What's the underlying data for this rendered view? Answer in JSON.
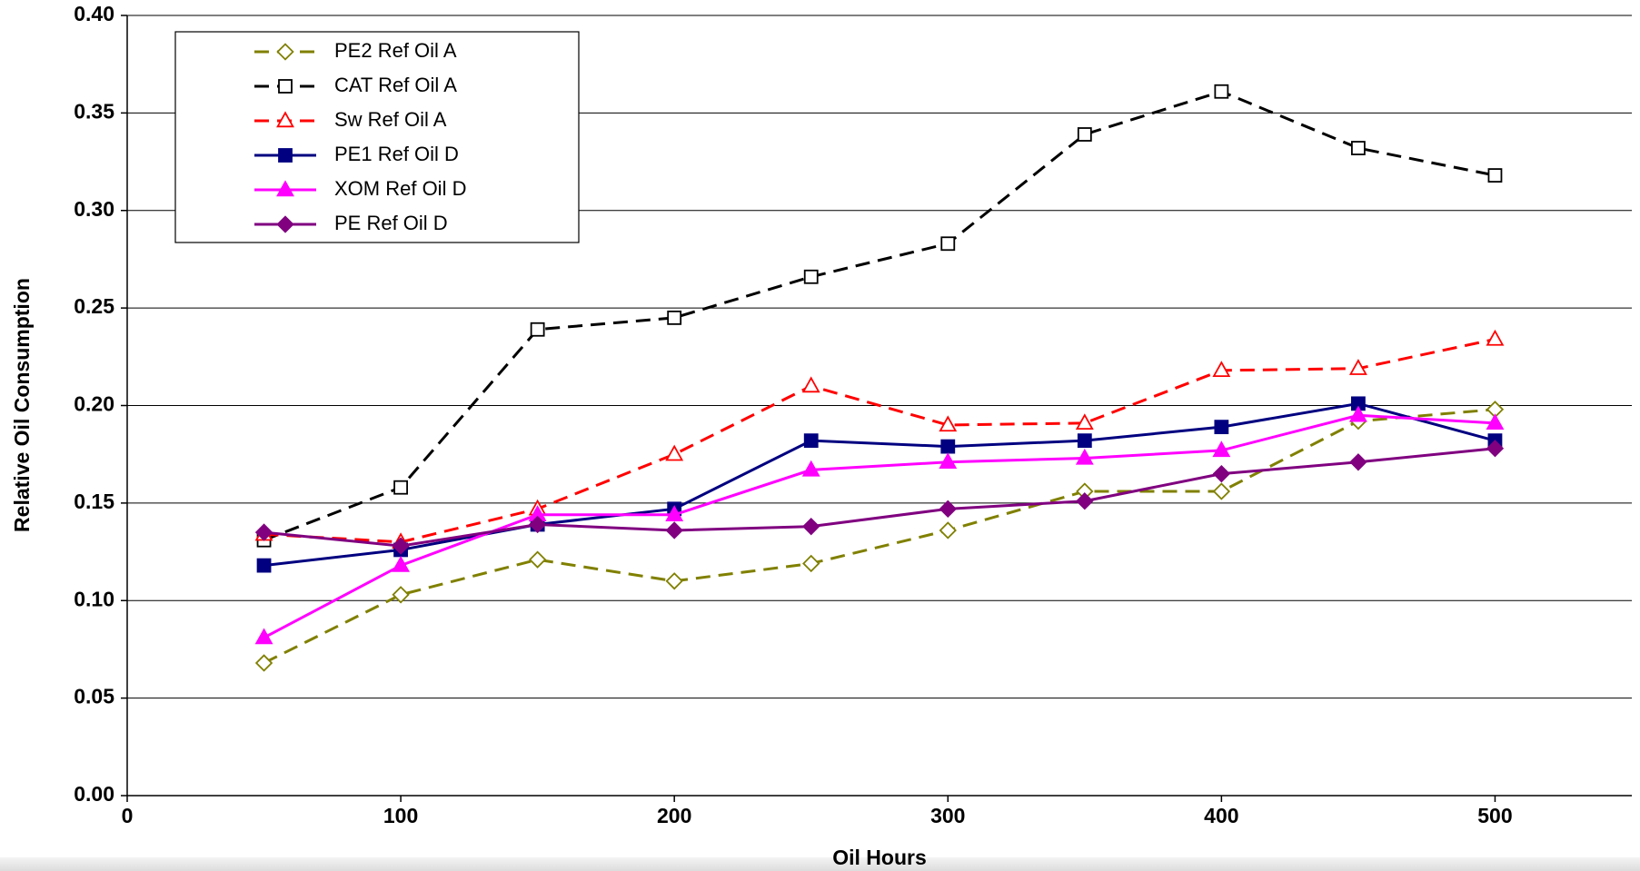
{
  "chart_data": {
    "type": "line",
    "x_label": "Oil Hours",
    "y_label": "Relative Oil Consumption",
    "x": [
      50,
      100,
      150,
      200,
      250,
      300,
      350,
      400,
      450,
      500
    ],
    "xlim": [
      0,
      550
    ],
    "xticks": [
      0,
      100,
      200,
      300,
      400,
      500
    ],
    "ylim": [
      0,
      0.4
    ],
    "yticks": [
      {
        "value": 0,
        "label": "0.00"
      },
      {
        "value": 0.05,
        "label": "0.05"
      },
      {
        "value": 0.1,
        "label": "0.10"
      },
      {
        "value": 0.15,
        "label": "0.15"
      },
      {
        "value": 0.2,
        "label": "0.20"
      },
      {
        "value": 0.25,
        "label": "0.25"
      },
      {
        "value": 0.3,
        "label": "0.30"
      },
      {
        "value": 0.35,
        "label": "0.35"
      },
      {
        "value": 0.4,
        "label": "0.40"
      }
    ],
    "grid": true,
    "legend": "upper left",
    "series": [
      {
        "name": "PE2 Ref Oil A",
        "color": "#808000",
        "marker": "diamond",
        "filled": false,
        "dashed": true,
        "values": [
          0.068,
          0.103,
          0.121,
          0.11,
          0.119,
          0.136,
          0.156,
          0.156,
          0.192,
          0.198
        ]
      },
      {
        "name": "CAT Ref Oil A",
        "color": "#000000",
        "marker": "square",
        "filled": false,
        "dashed": true,
        "values": [
          0.131,
          0.158,
          0.239,
          0.245,
          0.266,
          0.283,
          0.339,
          0.361,
          0.332,
          0.318
        ]
      },
      {
        "name": "Sw Ref Oil A",
        "color": "#ff0000",
        "marker": "triangle",
        "filled": false,
        "dashed": true,
        "values": [
          0.134,
          0.13,
          0.147,
          0.175,
          0.21,
          0.19,
          0.191,
          0.218,
          0.219,
          0.234
        ]
      },
      {
        "name": "PE1 Ref Oil D",
        "color": "#000080",
        "marker": "square",
        "filled": true,
        "dashed": false,
        "values": [
          0.118,
          0.126,
          0.139,
          0.147,
          0.182,
          0.179,
          0.182,
          0.189,
          0.201,
          0.182
        ]
      },
      {
        "name": "XOM Ref Oil D",
        "color": "#ff00ff",
        "marker": "triangle",
        "filled": true,
        "dashed": false,
        "values": [
          0.081,
          0.118,
          0.144,
          0.144,
          0.167,
          0.171,
          0.173,
          0.177,
          0.195,
          0.191
        ]
      },
      {
        "name": "PE Ref Oil D",
        "color": "#800080",
        "marker": "diamond",
        "filled": true,
        "dashed": false,
        "values": [
          0.135,
          0.128,
          0.139,
          0.136,
          0.138,
          0.147,
          0.151,
          0.165,
          0.171,
          0.178
        ]
      }
    ]
  }
}
